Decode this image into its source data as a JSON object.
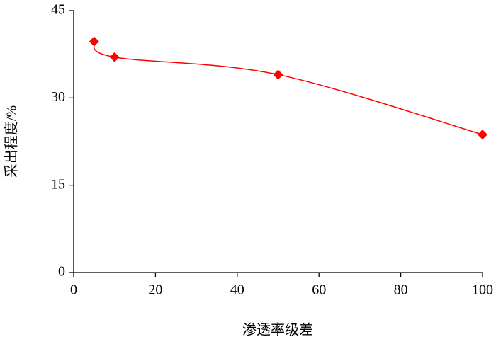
{
  "chart_data": {
    "type": "scatter",
    "x_label": "渗透率级差",
    "y_label": "采出程度/%",
    "series": [
      {
        "color": "#ff0000",
        "x": [
          5,
          10,
          50,
          100
        ],
        "values": [
          39.7,
          37.0,
          34.0,
          23.7
        ]
      }
    ],
    "smooth": true,
    "xlim": [
      0,
      100
    ],
    "xticks": [
      0,
      20,
      40,
      60,
      80,
      100
    ],
    "ylim": [
      0,
      45
    ],
    "yticks": [
      0,
      15,
      30,
      45
    ],
    "grid": false
  }
}
